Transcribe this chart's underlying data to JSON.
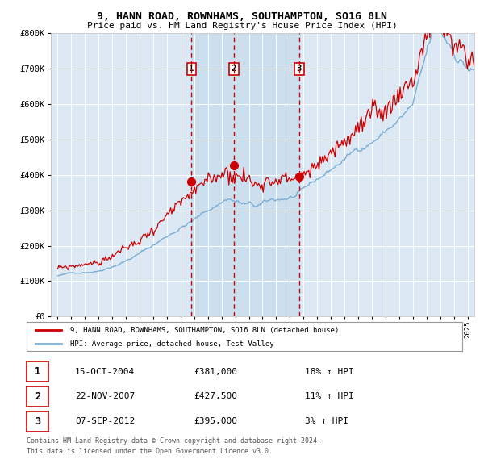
{
  "title": "9, HANN ROAD, ROWNHAMS, SOUTHAMPTON, SO16 8LN",
  "subtitle": "Price paid vs. HM Land Registry's House Price Index (HPI)",
  "plot_bg_color": "#dce9f5",
  "outer_bg_color": "#ffffff",
  "hpi_color": "#7aadd4",
  "price_color": "#cc0000",
  "vline_color": "#cc0000",
  "ylim": [
    0,
    800000
  ],
  "yticks": [
    0,
    100000,
    200000,
    300000,
    400000,
    500000,
    600000,
    700000,
    800000
  ],
  "sale1": {
    "date_num": 2004.79,
    "price": 381000,
    "label": "1"
  },
  "sale2": {
    "date_num": 2007.9,
    "price": 427500,
    "label": "2"
  },
  "sale3": {
    "date_num": 2012.68,
    "price": 395000,
    "label": "3"
  },
  "legend_line1": "9, HANN ROAD, ROWNHAMS, SOUTHAMPTON, SO16 8LN (detached house)",
  "legend_line2": "HPI: Average price, detached house, Test Valley",
  "table": [
    {
      "num": "1",
      "date": "15-OCT-2004",
      "price": "£381,000",
      "pct": "18% ↑ HPI"
    },
    {
      "num": "2",
      "date": "22-NOV-2007",
      "price": "£427,500",
      "pct": "11% ↑ HPI"
    },
    {
      "num": "3",
      "date": "07-SEP-2012",
      "price": "£395,000",
      "pct": "3% ↑ HPI"
    }
  ],
  "footnote1": "Contains HM Land Registry data © Crown copyright and database right 2024.",
  "footnote2": "This data is licensed under the Open Government Licence v3.0.",
  "xlim_start": 1994.5,
  "xlim_end": 2025.5
}
